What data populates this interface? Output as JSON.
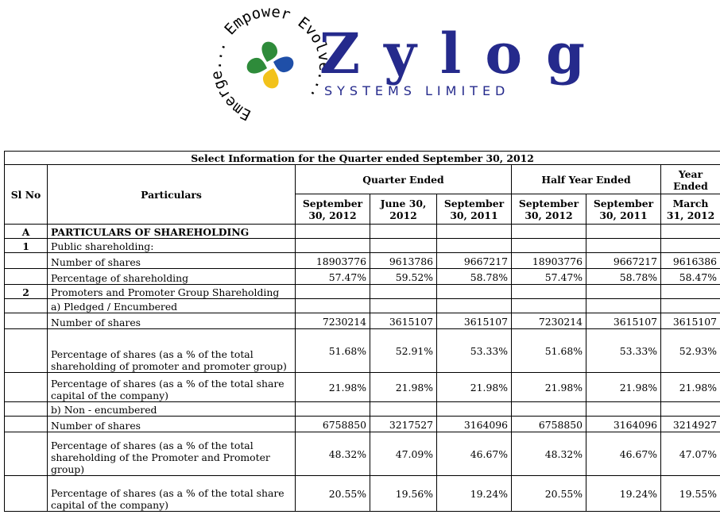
{
  "logo": {
    "tagline_ring": "Emerge... Empower Evolve...",
    "brand": "Zylog",
    "subtitle": "SYSTEMS LIMITED"
  },
  "table": {
    "caption": "Select Information for the Quarter ended September 30, 2012",
    "headers": {
      "sl_no": "Sl No",
      "particulars": "Particulars",
      "quarter_ended": "Quarter Ended",
      "half_year_ended": "Half Year Ended",
      "year_ended": "Year Ended",
      "periods": [
        "September 30, 2012",
        "June 30, 2012",
        "September 30, 2011",
        "September 30, 2012",
        "September 30, 2011",
        "March 31, 2012"
      ]
    },
    "rows": [
      {
        "sl": "A",
        "label": "PARTICULARS OF SHAREHOLDING",
        "bold": true,
        "values": [
          "",
          "",
          "",
          "",
          "",
          ""
        ]
      },
      {
        "sl": "1",
        "label": "Public shareholding:",
        "values": [
          "",
          "",
          "",
          "",
          "",
          ""
        ]
      },
      {
        "sl": "",
        "label": "Number of shares",
        "values": [
          "18903776",
          "9613786",
          "9667217",
          "18903776",
          "9667217",
          "9616386"
        ]
      },
      {
        "sl": "",
        "label": "Percentage of shareholding",
        "values": [
          "57.47%",
          "59.52%",
          "58.78%",
          "57.47%",
          "58.78%",
          "58.47%"
        ]
      },
      {
        "sl": "2",
        "label": "Promoters and Promoter Group Shareholding",
        "values": [
          "",
          "",
          "",
          "",
          "",
          ""
        ]
      },
      {
        "sl": "",
        "label": "a) Pledged / Encumbered",
        "values": [
          "",
          "",
          "",
          "",
          "",
          ""
        ]
      },
      {
        "sl": "",
        "label": "Number of shares",
        "values": [
          "7230214",
          "3615107",
          "3615107",
          "7230214",
          "3615107",
          "3615107"
        ]
      },
      {
        "sl": "",
        "label": "Percentage of shares (as a % of the total shareholding of promoter and promoter group)",
        "values": [
          "51.68%",
          "52.91%",
          "53.33%",
          "51.68%",
          "53.33%",
          "52.93%"
        ]
      },
      {
        "sl": "",
        "label": "Percentage of shares (as a % of the total share capital of the company)",
        "values": [
          "21.98%",
          "21.98%",
          "21.98%",
          "21.98%",
          "21.98%",
          "21.98%"
        ]
      },
      {
        "sl": "",
        "label": "b) Non - encumbered",
        "values": [
          "",
          "",
          "",
          "",
          "",
          ""
        ]
      },
      {
        "sl": "",
        "label": "Number of shares",
        "values": [
          "6758850",
          "3217527",
          "3164096",
          "6758850",
          "3164096",
          "3214927"
        ]
      },
      {
        "sl": "",
        "label": "Percentage of shares (as a % of the total shareholding of the Promoter and Promoter group)",
        "values": [
          "48.32%",
          "47.09%",
          "46.67%",
          "48.32%",
          "46.67%",
          "47.07%"
        ]
      },
      {
        "sl": "",
        "label": "Percentage of shares (as a % of the total share capital of the company)",
        "values": [
          "20.55%",
          "19.56%",
          "19.24%",
          "20.55%",
          "19.24%",
          "19.55%"
        ]
      }
    ]
  },
  "colors": {
    "brand_navy": "#252a8c",
    "logo_green": "#2e8b3a",
    "logo_yellow": "#f2c21b",
    "logo_blue": "#1f4fa8"
  }
}
